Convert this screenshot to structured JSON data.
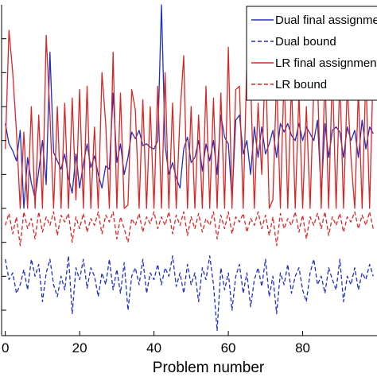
{
  "chart_data": {
    "type": "line",
    "title": "",
    "xlabel": "Problem number",
    "ylabel": "",
    "xlim": [
      -1,
      100
    ],
    "ylim": [
      -0.75,
      1.2
    ],
    "x_ticks": [
      0,
      20,
      40,
      60,
      80
    ],
    "y_gridlines": [
      1.0,
      0.8,
      0.6,
      0.4,
      0.2,
      0.0,
      -0.2,
      -0.4,
      -0.6
    ],
    "grid": false,
    "legend_position": "top-right",
    "colors": {
      "dual": "#1f2fbf",
      "lr": "#d62728"
    },
    "series": [
      {
        "name": "Dual final assignment",
        "style": "solid",
        "color": "#1f2fbf",
        "x": [
          0,
          1,
          2,
          3,
          4,
          5,
          6,
          7,
          8,
          9,
          10,
          11,
          12,
          13,
          14,
          15,
          16,
          17,
          18,
          19,
          20,
          21,
          22,
          23,
          24,
          25,
          26,
          27,
          28,
          29,
          30,
          31,
          32,
          33,
          34,
          35,
          36,
          37,
          38,
          39,
          40,
          41,
          42,
          43,
          44,
          45,
          46,
          47,
          48,
          49,
          50,
          51,
          52,
          53,
          54,
          55,
          56,
          57,
          58,
          59,
          60,
          61,
          62,
          63,
          64,
          65,
          66,
          67,
          68,
          69,
          70,
          71,
          72,
          73,
          74,
          75,
          76,
          77,
          78,
          79,
          80,
          81,
          82,
          83,
          84,
          85,
          86,
          87,
          88,
          89,
          90,
          91,
          92,
          93,
          94,
          95,
          96,
          97,
          98,
          99
        ],
        "values": [
          0.5,
          0.38,
          0.34,
          0.28,
          0.46,
          0.0,
          0.3,
          0.15,
          0.06,
          0.22,
          0.4,
          0.14,
          0.92,
          0.33,
          0.28,
          0.23,
          0.32,
          0.18,
          0.09,
          0.32,
          0.12,
          0.26,
          0.38,
          0.24,
          0.31,
          0.2,
          0.12,
          0.25,
          0.23,
          0.68,
          0.27,
          0.38,
          0.2,
          0.3,
          0.45,
          0.41,
          0.46,
          0.37,
          0.38,
          0.36,
          0.35,
          0.4,
          1.2,
          0.37,
          0.2,
          0.27,
          0.18,
          0.12,
          0.35,
          0.42,
          0.27,
          0.3,
          0.4,
          0.22,
          0.38,
          0.28,
          0.4,
          0.2,
          0.55,
          0.42,
          0.38,
          0.05,
          0.52,
          0.55,
          0.32,
          0.4,
          0.2,
          0.48,
          0.3,
          0.48,
          0.32,
          0.38,
          0.46,
          0.3,
          0.5,
          0.45,
          0.5,
          0.43,
          0.4,
          0.5,
          0.4,
          0.48,
          0.44,
          0.4,
          0.52,
          0.08,
          0.5,
          0.3,
          0.46,
          0.48,
          0.45,
          0.3,
          0.48,
          0.4,
          0.46,
          0.3,
          0.52,
          0.35,
          0.48,
          0.44
        ]
      },
      {
        "name": "Dual bound",
        "style": "dashed",
        "color": "#1f2fbf",
        "x": [
          0,
          1,
          2,
          3,
          4,
          5,
          6,
          7,
          8,
          9,
          10,
          11,
          12,
          13,
          14,
          15,
          16,
          17,
          18,
          19,
          20,
          21,
          22,
          23,
          24,
          25,
          26,
          27,
          28,
          29,
          30,
          31,
          32,
          33,
          34,
          35,
          36,
          37,
          38,
          39,
          40,
          41,
          42,
          43,
          44,
          45,
          46,
          47,
          48,
          49,
          50,
          51,
          52,
          53,
          54,
          55,
          56,
          57,
          58,
          59,
          60,
          61,
          62,
          63,
          64,
          65,
          66,
          67,
          68,
          69,
          70,
          71,
          72,
          73,
          74,
          75,
          76,
          77,
          78,
          79,
          80,
          81,
          82,
          83,
          84,
          85,
          86,
          87,
          88,
          89,
          90,
          91,
          92,
          93,
          94,
          95,
          96,
          97,
          98,
          99
        ],
        "values": [
          -0.3,
          -0.42,
          -0.38,
          -0.5,
          -0.45,
          -0.36,
          -0.48,
          -0.3,
          -0.4,
          -0.33,
          -0.55,
          -0.38,
          -0.3,
          -0.45,
          -0.52,
          -0.4,
          -0.48,
          -0.28,
          -0.62,
          -0.35,
          -0.42,
          -0.3,
          -0.47,
          -0.35,
          -0.4,
          -0.52,
          -0.38,
          -0.45,
          -0.3,
          -0.48,
          -0.36,
          -0.5,
          -0.32,
          -0.6,
          -0.4,
          -0.35,
          -0.45,
          -0.3,
          -0.5,
          -0.38,
          -0.42,
          -0.33,
          -0.45,
          -0.35,
          -0.4,
          -0.28,
          -0.46,
          -0.38,
          -0.5,
          -0.33,
          -0.45,
          -0.38,
          -0.55,
          -0.35,
          -0.42,
          -0.28,
          -0.45,
          -0.72,
          -0.35,
          -0.48,
          -0.38,
          -0.6,
          -0.4,
          -0.33,
          -0.5,
          -0.38,
          -0.58,
          -0.42,
          -0.35,
          -0.46,
          -0.3,
          -0.52,
          -0.4,
          -0.62,
          -0.38,
          -0.45,
          -0.33,
          -0.5,
          -0.4,
          -0.35,
          -0.48,
          -0.55,
          -0.38,
          -0.3,
          -0.45,
          -0.4,
          -0.5,
          -0.35,
          -0.42,
          -0.48,
          -0.3,
          -0.55,
          -0.4,
          -0.45,
          -0.35,
          -0.48,
          -0.38,
          -0.42,
          -0.33,
          -0.4
        ]
      },
      {
        "name": "LR final assignment",
        "style": "solid",
        "color": "#d62728",
        "x": [
          0,
          1,
          2,
          3,
          4,
          5,
          6,
          7,
          8,
          9,
          10,
          11,
          12,
          13,
          14,
          15,
          16,
          17,
          18,
          19,
          20,
          21,
          22,
          23,
          24,
          25,
          26,
          27,
          28,
          29,
          30,
          31,
          32,
          33,
          34,
          35,
          36,
          37,
          38,
          39,
          40,
          41,
          42,
          43,
          44,
          45,
          46,
          47,
          48,
          49,
          50,
          51,
          52,
          53,
          54,
          55,
          56,
          57,
          58,
          59,
          60,
          61,
          62,
          63,
          64,
          65,
          66,
          67,
          68,
          69,
          70,
          71,
          72,
          73,
          74,
          75,
          76,
          77,
          78,
          79,
          80,
          81,
          82,
          83,
          84,
          85,
          86,
          87,
          88,
          89,
          90,
          91,
          92,
          93,
          94,
          95,
          96,
          97,
          98,
          99
        ],
        "values": [
          0.35,
          1.05,
          0.8,
          0.45,
          0.0,
          0.45,
          0.0,
          0.6,
          0.0,
          0.55,
          0.0,
          1.02,
          0.55,
          0.0,
          0.6,
          0.0,
          0.62,
          0.0,
          0.65,
          0.05,
          0.7,
          0.0,
          0.72,
          0.0,
          0.48,
          0.0,
          0.8,
          0.5,
          0.0,
          0.92,
          0.0,
          0.68,
          0.0,
          0.02,
          0.7,
          0.58,
          0.0,
          0.64,
          0.0,
          0.6,
          0.0,
          0.72,
          0.0,
          0.8,
          0.0,
          0.62,
          0.0,
          0.55,
          0.9,
          0.0,
          0.6,
          0.0,
          0.55,
          0.0,
          0.72,
          0.0,
          0.65,
          0.0,
          0.68,
          0.0,
          0.95,
          0.0,
          0.7,
          0.72,
          0.0,
          0.88,
          0.75,
          0.0,
          0.62,
          0.2,
          0.92,
          0.0,
          0.05,
          0.78,
          0.0,
          0.8,
          0.0,
          0.75,
          0.0,
          0.68,
          0.0,
          0.6,
          0.0,
          0.72,
          0.75,
          0.0,
          0.8,
          0.0,
          0.82,
          0.0,
          0.78,
          0.0,
          0.72,
          0.3,
          0.0,
          0.7,
          0.0,
          0.8,
          0.0,
          0.85
        ]
      },
      {
        "name": "LR bound",
        "style": "dashed",
        "color": "#d62728",
        "x": [
          0,
          1,
          2,
          3,
          4,
          5,
          6,
          7,
          8,
          9,
          10,
          11,
          12,
          13,
          14,
          15,
          16,
          17,
          18,
          19,
          20,
          21,
          22,
          23,
          24,
          25,
          26,
          27,
          28,
          29,
          30,
          31,
          32,
          33,
          34,
          35,
          36,
          37,
          38,
          39,
          40,
          41,
          42,
          43,
          44,
          45,
          46,
          47,
          48,
          49,
          50,
          51,
          52,
          53,
          54,
          55,
          56,
          57,
          58,
          59,
          60,
          61,
          62,
          63,
          64,
          65,
          66,
          67,
          68,
          69,
          70,
          71,
          72,
          73,
          74,
          75,
          76,
          77,
          78,
          79,
          80,
          81,
          82,
          83,
          84,
          85,
          86,
          87,
          88,
          89,
          90,
          91,
          92,
          93,
          94,
          95,
          96,
          97,
          98,
          99
        ],
        "values": [
          -0.1,
          -0.03,
          -0.15,
          -0.05,
          -0.22,
          -0.02,
          -0.12,
          -0.06,
          -0.18,
          -0.02,
          -0.14,
          -0.05,
          -0.1,
          -0.02,
          -0.16,
          -0.04,
          -0.08,
          -0.03,
          -0.2,
          -0.05,
          -0.12,
          -0.03,
          -0.14,
          -0.06,
          -0.1,
          -0.02,
          -0.15,
          -0.04,
          -0.08,
          -0.02,
          -0.18,
          -0.05,
          -0.12,
          -0.2,
          -0.06,
          -0.1,
          -0.03,
          -0.14,
          -0.05,
          -0.09,
          -0.02,
          -0.12,
          -0.05,
          -0.1,
          -0.02,
          -0.15,
          -0.04,
          -0.1,
          -0.02,
          -0.16,
          -0.05,
          -0.12,
          -0.03,
          -0.14,
          -0.06,
          -0.1,
          -0.02,
          -0.18,
          -0.04,
          -0.12,
          -0.02,
          -0.15,
          -0.05,
          -0.08,
          -0.03,
          -0.14,
          -0.06,
          -0.1,
          -0.02,
          -0.12,
          -0.04,
          -0.16,
          -0.05,
          -0.22,
          -0.03,
          -0.12,
          -0.06,
          -0.1,
          -0.02,
          -0.14,
          -0.04,
          -0.18,
          -0.05,
          -0.1,
          -0.03,
          -0.12,
          -0.02,
          -0.16,
          -0.05,
          -0.1,
          -0.03,
          -0.14,
          -0.05,
          -0.08,
          -0.02,
          -0.12,
          -0.04,
          -0.1,
          -0.02,
          -0.12
        ]
      }
    ],
    "legend": [
      {
        "label": "Dual final assignment",
        "style": "solid",
        "color": "#1f2fbf"
      },
      {
        "label": "Dual bound",
        "style": "dashed",
        "color": "#1f2fbf"
      },
      {
        "label": "LR final assignment",
        "style": "solid",
        "color": "#d62728"
      },
      {
        "label": "LR bound",
        "style": "dashed",
        "color": "#d62728"
      }
    ]
  }
}
